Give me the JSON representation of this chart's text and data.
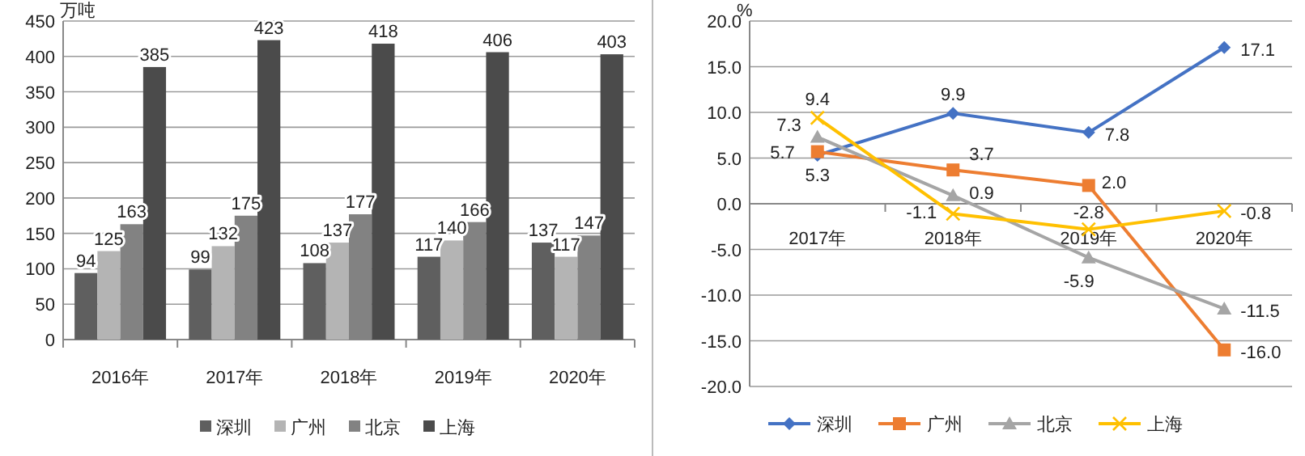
{
  "chart_data": [
    {
      "type": "bar",
      "ylabel": "万吨",
      "categories": [
        "2016年",
        "2017年",
        "2018年",
        "2019年",
        "2020年"
      ],
      "series": [
        {
          "name": "深圳",
          "color": "#5f5f5f",
          "values": [
            94,
            99,
            108,
            117,
            137
          ]
        },
        {
          "name": "广州",
          "color": "#b4b4b4",
          "values": [
            125,
            132,
            137,
            140,
            117
          ]
        },
        {
          "name": "北京",
          "color": "#828282",
          "values": [
            163,
            175,
            177,
            166,
            147
          ]
        },
        {
          "name": "上海",
          "color": "#4b4b4b",
          "values": [
            385,
            423,
            418,
            406,
            403
          ]
        }
      ],
      "ylim": [
        0,
        450
      ],
      "yticks": [
        0,
        50,
        100,
        150,
        200,
        250,
        300,
        350,
        400,
        450
      ],
      "grid": "y",
      "legend": "bottom",
      "data_labels": true
    },
    {
      "type": "line",
      "ylabel": "%",
      "categories": [
        "2017年",
        "2018年",
        "2019年",
        "2020年"
      ],
      "series": [
        {
          "name": "深圳",
          "color": "#4472c4",
          "marker": "diamond",
          "values": [
            5.3,
            9.9,
            7.8,
            17.1
          ],
          "value_labels": [
            "5.3",
            "9.9",
            "7.8",
            "17.1"
          ]
        },
        {
          "name": "广州",
          "color": "#ed7d31",
          "marker": "square",
          "values": [
            5.7,
            3.7,
            2.0,
            -16.0
          ],
          "value_labels": [
            "5.7",
            "3.7",
            "2.0",
            "-16.0"
          ]
        },
        {
          "name": "北京",
          "color": "#a5a5a5",
          "marker": "triangle",
          "values": [
            7.3,
            0.9,
            -5.9,
            -11.5
          ],
          "value_labels": [
            "7.3",
            "0.9",
            "-5.9",
            "-11.5"
          ]
        },
        {
          "name": "上海",
          "color": "#ffc000",
          "marker": "cross",
          "values": [
            9.4,
            -1.1,
            -2.8,
            -0.8
          ],
          "value_labels": [
            "9.4",
            "-1.1",
            "-2.8",
            "-0.8"
          ]
        }
      ],
      "ylim": [
        -20,
        20
      ],
      "yticks": [
        {
          "value": -20,
          "label": "-20.0"
        },
        {
          "value": -15,
          "label": "-15.0"
        },
        {
          "value": -10,
          "label": "-10.0"
        },
        {
          "value": -5,
          "label": "-5.0"
        },
        {
          "value": 0,
          "label": "0.0"
        },
        {
          "value": 5,
          "label": "5.0"
        },
        {
          "value": 10,
          "label": "10.0"
        },
        {
          "value": 15,
          "label": "15.0"
        },
        {
          "value": 20,
          "label": "20.0"
        }
      ],
      "grid": "y",
      "legend": "bottom"
    }
  ]
}
